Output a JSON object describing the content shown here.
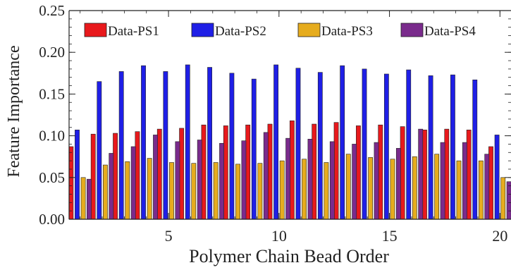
{
  "chart_data": {
    "type": "bar",
    "title": "",
    "xlabel": "Polymer Chain Bead Order",
    "ylabel": "Feature Importance",
    "xlim": [
      0.5,
      20.5
    ],
    "ylim": [
      0,
      0.25
    ],
    "xticks": [
      5,
      10,
      15,
      20
    ],
    "yticks": [
      0,
      0.05,
      0.1,
      0.15,
      0.2,
      0.25
    ],
    "ytick_labels": [
      "0.00",
      "0.05",
      "0.10",
      "0.15",
      "0.20",
      "0.25"
    ],
    "x": [
      1,
      2,
      3,
      4,
      5,
      6,
      7,
      8,
      9,
      10,
      11,
      12,
      13,
      14,
      15,
      16,
      17,
      18,
      19,
      20
    ],
    "grid": false,
    "legend_position": "top",
    "series": [
      {
        "name": "Data-PS1",
        "color": "#e8191c",
        "values": [
          0.087,
          0.102,
          0.103,
          0.105,
          0.108,
          0.109,
          0.113,
          0.112,
          0.113,
          0.114,
          0.118,
          0.114,
          0.116,
          0.112,
          0.113,
          0.111,
          0.107,
          0.108,
          0.107,
          0.087
        ]
      },
      {
        "name": "Data-PS2",
        "color": "#1f1fe6",
        "values": [
          0.107,
          0.165,
          0.177,
          0.184,
          0.177,
          0.185,
          0.182,
          0.175,
          0.168,
          0.185,
          0.181,
          0.176,
          0.184,
          0.18,
          0.174,
          0.179,
          0.172,
          0.173,
          0.167,
          0.101
        ]
      },
      {
        "name": "Data-PS3",
        "color": "#e6ac1e",
        "values": [
          0.05,
          0.065,
          0.069,
          0.073,
          0.068,
          0.067,
          0.068,
          0.066,
          0.067,
          0.07,
          0.072,
          0.068,
          0.078,
          0.074,
          0.072,
          0.075,
          0.078,
          0.07,
          0.07,
          0.05
        ]
      },
      {
        "name": "Data-PS4",
        "color": "#7a2b8c",
        "values": [
          0.048,
          0.079,
          0.087,
          0.101,
          0.093,
          0.095,
          0.091,
          0.094,
          0.104,
          0.097,
          0.096,
          0.093,
          0.09,
          0.092,
          0.085,
          0.108,
          0.092,
          0.092,
          0.078,
          0.045
        ]
      }
    ]
  }
}
